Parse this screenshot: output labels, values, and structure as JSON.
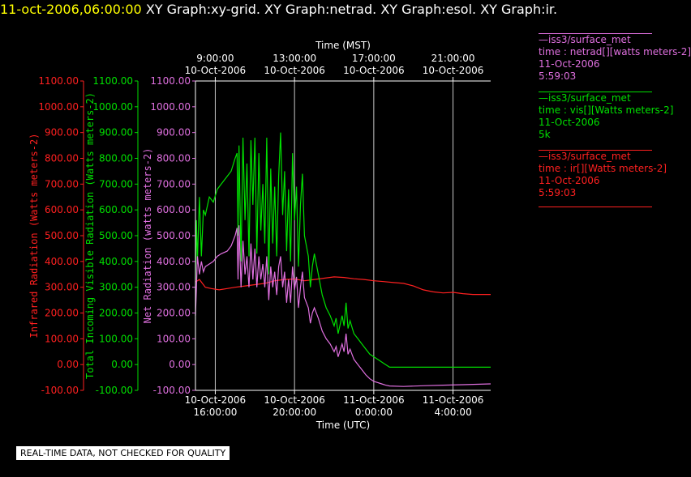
{
  "header": {
    "timestamp": "11-oct-2006,06:00:00",
    "graphs": "XY Graph:xy-grid.  XY Graph:netrad.  XY Graph:esol.  XY Graph:ir."
  },
  "colors": {
    "ir": "#ff2020",
    "vis": "#00e000",
    "net": "#e070e0",
    "grid": "#c8c8c8",
    "axis": "#ffffff"
  },
  "legend": [
    {
      "color": "#e070e0",
      "lines": [
        "—iss3/surface_met",
        "time : netrad[][watts meters-2]",
        "11-Oct-2006",
        "5:59:03"
      ]
    },
    {
      "color": "#00e000",
      "lines": [
        "—iss3/surface_met",
        "time : vis[][Watts meters-2]",
        "11-Oct-2006",
        "5k"
      ]
    },
    {
      "color": "#ff2020",
      "lines": [
        "—iss3/surface_met",
        "time : ir[][Watts meters-2]",
        "11-Oct-2006",
        "5:59:03"
      ]
    }
  ],
  "qc_note": "REAL-TIME DATA, NOT CHECKED FOR QUALITY",
  "chart_data": {
    "type": "line",
    "xlabel_bottom": "Time (UTC)",
    "xlabel_top": "Time (MST)",
    "x_range_hours_utc": [
      15.0,
      29.9
    ],
    "bottom_ticks": [
      {
        "h": 16,
        "date": "10-Oct-2006",
        "time": "16:00:00"
      },
      {
        "h": 20,
        "date": "10-Oct-2006",
        "time": "20:00:00"
      },
      {
        "h": 24,
        "date": "11-Oct-2006",
        "time": "0:00:00"
      },
      {
        "h": 28,
        "date": "11-Oct-2006",
        "time": "4:00:00"
      }
    ],
    "top_ticks": [
      {
        "h": 16,
        "time": "9:00:00",
        "date": "10-Oct-2006"
      },
      {
        "h": 20,
        "time": "13:00:00",
        "date": "10-Oct-2006"
      },
      {
        "h": 24,
        "time": "17:00:00",
        "date": "10-Oct-2006"
      },
      {
        "h": 28,
        "time": "21:00:00",
        "date": "10-Oct-2006"
      }
    ],
    "ylim": [
      -100,
      1100
    ],
    "yticks": [
      -100.0,
      0.0,
      100.0,
      200.0,
      300.0,
      400.0,
      500.0,
      600.0,
      700.0,
      800.0,
      900.0,
      1000.0,
      1100.0
    ],
    "ylabels": {
      "ir": "Infrared Radiation (Watts meters-2)",
      "vis": "Total Incoming Visible Radiation (Watts meters-2)",
      "net": "Net Radiation (watts meters-2)"
    },
    "series": [
      {
        "name": "ir",
        "points": [
          [
            15.0,
            320
          ],
          [
            15.2,
            330
          ],
          [
            15.5,
            300
          ],
          [
            15.8,
            295
          ],
          [
            16.2,
            290
          ],
          [
            16.6,
            295
          ],
          [
            17.0,
            300
          ],
          [
            17.5,
            305
          ],
          [
            18.0,
            310
          ],
          [
            18.5,
            315
          ],
          [
            19.0,
            325
          ],
          [
            19.5,
            330
          ],
          [
            20.0,
            332
          ],
          [
            20.5,
            325
          ],
          [
            21.0,
            330
          ],
          [
            21.5,
            335
          ],
          [
            22.0,
            340
          ],
          [
            22.5,
            338
          ],
          [
            23.0,
            333
          ],
          [
            23.5,
            330
          ],
          [
            24.0,
            325
          ],
          [
            24.5,
            322
          ],
          [
            25.0,
            318
          ],
          [
            25.5,
            315
          ],
          [
            26.0,
            305
          ],
          [
            26.5,
            290
          ],
          [
            27.0,
            282
          ],
          [
            27.5,
            278
          ],
          [
            28.0,
            280
          ],
          [
            28.5,
            275
          ],
          [
            29.0,
            272
          ],
          [
            29.9,
            272
          ]
        ]
      },
      {
        "name": "vis",
        "points": [
          [
            15.0,
            330
          ],
          [
            15.05,
            560
          ],
          [
            15.1,
            400
          ],
          [
            15.2,
            650
          ],
          [
            15.3,
            420
          ],
          [
            15.4,
            600
          ],
          [
            15.5,
            580
          ],
          [
            15.7,
            650
          ],
          [
            15.9,
            630
          ],
          [
            16.1,
            680
          ],
          [
            16.3,
            700
          ],
          [
            16.6,
            730
          ],
          [
            16.8,
            750
          ],
          [
            17.0,
            800
          ],
          [
            17.1,
            820
          ],
          [
            17.15,
            500
          ],
          [
            17.2,
            850
          ],
          [
            17.3,
            400
          ],
          [
            17.4,
            880
          ],
          [
            17.5,
            560
          ],
          [
            17.6,
            780
          ],
          [
            17.7,
            420
          ],
          [
            17.8,
            870
          ],
          [
            17.9,
            620
          ],
          [
            18.0,
            880
          ],
          [
            18.1,
            430
          ],
          [
            18.2,
            820
          ],
          [
            18.3,
            520
          ],
          [
            18.4,
            700
          ],
          [
            18.5,
            470
          ],
          [
            18.6,
            880
          ],
          [
            18.7,
            350
          ],
          [
            18.8,
            760
          ],
          [
            18.9,
            470
          ],
          [
            19.0,
            690
          ],
          [
            19.1,
            420
          ],
          [
            19.2,
            730
          ],
          [
            19.3,
            900
          ],
          [
            19.4,
            580
          ],
          [
            19.5,
            750
          ],
          [
            19.6,
            440
          ],
          [
            19.7,
            680
          ],
          [
            19.8,
            400
          ],
          [
            19.9,
            820
          ],
          [
            20.0,
            560
          ],
          [
            20.1,
            690
          ],
          [
            20.2,
            380
          ],
          [
            20.3,
            620
          ],
          [
            20.4,
            740
          ],
          [
            20.5,
            500
          ],
          [
            20.6,
            460
          ],
          [
            20.7,
            420
          ],
          [
            20.8,
            300
          ],
          [
            20.9,
            380
          ],
          [
            21.0,
            430
          ],
          [
            21.2,
            350
          ],
          [
            21.4,
            270
          ],
          [
            21.6,
            220
          ],
          [
            21.8,
            190
          ],
          [
            22.0,
            150
          ],
          [
            22.1,
            180
          ],
          [
            22.2,
            120
          ],
          [
            22.4,
            190
          ],
          [
            22.5,
            150
          ],
          [
            22.6,
            240
          ],
          [
            22.7,
            140
          ],
          [
            22.8,
            170
          ],
          [
            23.0,
            120
          ],
          [
            23.2,
            100
          ],
          [
            23.4,
            80
          ],
          [
            23.6,
            60
          ],
          [
            23.8,
            40
          ],
          [
            24.0,
            30
          ],
          [
            24.2,
            20
          ],
          [
            24.4,
            10
          ],
          [
            24.6,
            0
          ],
          [
            24.8,
            -10
          ],
          [
            25.0,
            -10
          ],
          [
            26.0,
            -10
          ],
          [
            27.0,
            -10
          ],
          [
            28.0,
            -10
          ],
          [
            29.0,
            -10
          ],
          [
            29.9,
            -10
          ]
        ]
      },
      {
        "name": "net",
        "points": [
          [
            15.0,
            190
          ],
          [
            15.05,
            300
          ],
          [
            15.1,
            420
          ],
          [
            15.2,
            350
          ],
          [
            15.3,
            400
          ],
          [
            15.4,
            360
          ],
          [
            15.5,
            380
          ],
          [
            15.7,
            390
          ],
          [
            15.9,
            400
          ],
          [
            16.1,
            420
          ],
          [
            16.3,
            430
          ],
          [
            16.6,
            440
          ],
          [
            16.8,
            460
          ],
          [
            17.0,
            500
          ],
          [
            17.1,
            530
          ],
          [
            17.15,
            330
          ],
          [
            17.2,
            540
          ],
          [
            17.3,
            300
          ],
          [
            17.4,
            480
          ],
          [
            17.5,
            350
          ],
          [
            17.6,
            420
          ],
          [
            17.7,
            300
          ],
          [
            17.8,
            470
          ],
          [
            17.9,
            330
          ],
          [
            18.0,
            450
          ],
          [
            18.1,
            300
          ],
          [
            18.2,
            420
          ],
          [
            18.3,
            330
          ],
          [
            18.4,
            390
          ],
          [
            18.5,
            300
          ],
          [
            18.6,
            420
          ],
          [
            18.7,
            250
          ],
          [
            18.8,
            380
          ],
          [
            18.9,
            300
          ],
          [
            19.0,
            360
          ],
          [
            19.1,
            270
          ],
          [
            19.2,
            380
          ],
          [
            19.3,
            420
          ],
          [
            19.4,
            300
          ],
          [
            19.5,
            360
          ],
          [
            19.6,
            240
          ],
          [
            19.7,
            330
          ],
          [
            19.8,
            240
          ],
          [
            19.9,
            380
          ],
          [
            20.0,
            290
          ],
          [
            20.1,
            340
          ],
          [
            20.2,
            220
          ],
          [
            20.3,
            300
          ],
          [
            20.4,
            360
          ],
          [
            20.5,
            260
          ],
          [
            20.6,
            240
          ],
          [
            20.7,
            220
          ],
          [
            20.8,
            160
          ],
          [
            20.9,
            200
          ],
          [
            21.0,
            220
          ],
          [
            21.2,
            180
          ],
          [
            21.4,
            130
          ],
          [
            21.6,
            100
          ],
          [
            21.8,
            80
          ],
          [
            22.0,
            50
          ],
          [
            22.1,
            70
          ],
          [
            22.2,
            30
          ],
          [
            22.4,
            80
          ],
          [
            22.5,
            50
          ],
          [
            22.6,
            120
          ],
          [
            22.7,
            40
          ],
          [
            22.8,
            60
          ],
          [
            23.0,
            20
          ],
          [
            23.2,
            0
          ],
          [
            23.4,
            -20
          ],
          [
            23.6,
            -40
          ],
          [
            23.8,
            -55
          ],
          [
            24.0,
            -65
          ],
          [
            24.2,
            -70
          ],
          [
            24.4,
            -75
          ],
          [
            24.6,
            -80
          ],
          [
            24.8,
            -83
          ],
          [
            25.5,
            -85
          ],
          [
            26.5,
            -82
          ],
          [
            27.5,
            -80
          ],
          [
            28.5,
            -78
          ],
          [
            29.9,
            -75
          ]
        ]
      }
    ]
  }
}
